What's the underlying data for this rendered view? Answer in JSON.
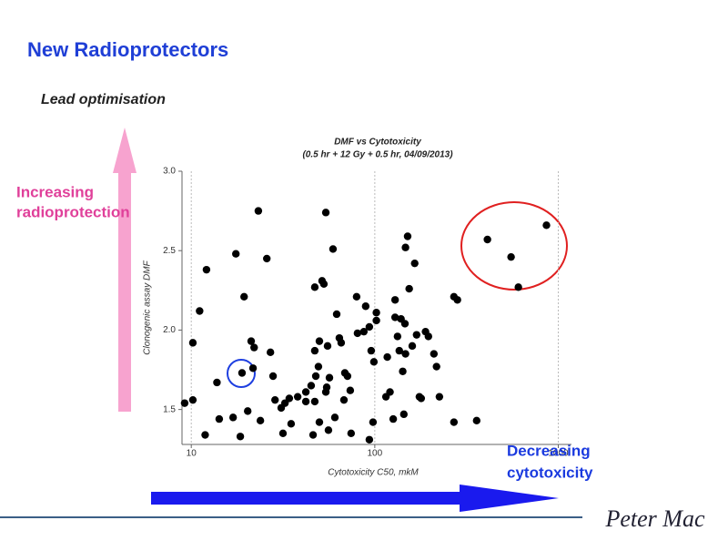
{
  "slide": {
    "title": "New Radioprotectors",
    "subtitle": "Lead optimisation",
    "left_note": [
      "Increasing",
      "radioprotection"
    ],
    "bottom_note": [
      "Decreasing",
      "cytotoxicity"
    ],
    "logo": "Peter Mac"
  },
  "chart_data": {
    "type": "scatter",
    "title": "DMF vs Cytotoxicity",
    "subtitle": "(0.5 hr + 12 Gy + 0.5 hr, 04/09/2013)",
    "x_label": "Cytotoxicity C50, mkM",
    "y_label": "Clonogenic assay DMF",
    "xscale": "log",
    "xlim": [
      8.9,
      1180
    ],
    "ylim": [
      1.28,
      3.0
    ],
    "xticks": [
      10,
      100,
      1000
    ],
    "yticks": [
      1.5,
      {
        "value": 2,
        "label": "2.0"
      },
      2.5,
      {
        "value": 3,
        "label": "3.0"
      }
    ],
    "grid": "x",
    "color": "#000000",
    "x": [
      9.2,
      10.2,
      10.2,
      11.1,
      12.1,
      11.9,
      13.8,
      14.2,
      16.9,
      17.5,
      18.5,
      19.4,
      20.3,
      21.2,
      22.0,
      21.7,
      23.2,
      23.8,
      25.8,
      27.0,
      27.9,
      28.6,
      30.9,
      31.6,
      32.4,
      34.2,
      35.0,
      38.0,
      42.1,
      42.1,
      45.0,
      46.1,
      47.1,
      47.7,
      47.1,
      49.3,
      49.9,
      47.1,
      49.9,
      51.6,
      52.8,
      54.1,
      54.1,
      54.7,
      55.3,
      56.6,
      55.9,
      59.2,
      60.6,
      62.0,
      64.1,
      65.6,
      67.9,
      68.7,
      71.0,
      74.3,
      73.5,
      79.6,
      80.5,
      87.2,
      89.2,
      93.4,
      95.6,
      98.9,
      102,
      93.4,
      97.8,
      102,
      115,
      117,
      121,
      126,
      129,
      129,
      133,
      136,
      139,
      142,
      146,
      144,
      147,
      151,
      147,
      154,
      160,
      165,
      169,
      175,
      179,
      189,
      196,
      210,
      217,
      225,
      270,
      270,
      282,
      359,
      411,
      553,
      606,
      862,
      18.9
    ],
    "y": [
      1.54,
      1.56,
      1.92,
      2.12,
      2.38,
      1.34,
      1.67,
      1.44,
      1.45,
      2.48,
      1.33,
      2.21,
      1.49,
      1.93,
      1.89,
      1.76,
      2.75,
      1.43,
      2.45,
      1.86,
      1.71,
      1.56,
      1.51,
      1.35,
      1.54,
      1.57,
      1.41,
      1.58,
      1.61,
      1.55,
      1.65,
      1.34,
      1.55,
      1.71,
      1.87,
      1.77,
      1.93,
      2.27,
      1.42,
      2.31,
      2.29,
      2.74,
      1.61,
      1.64,
      1.9,
      1.7,
      1.37,
      2.51,
      1.45,
      2.1,
      1.95,
      1.92,
      1.56,
      1.73,
      1.71,
      1.35,
      1.62,
      2.21,
      1.98,
      1.99,
      2.15,
      2.02,
      1.87,
      1.8,
      2.11,
      1.31,
      1.42,
      2.06,
      1.58,
      1.83,
      1.61,
      1.44,
      2.19,
      2.08,
      1.96,
      1.87,
      2.07,
      1.74,
      2.04,
      1.47,
      1.85,
      2.59,
      2.52,
      2.26,
      1.9,
      2.42,
      1.97,
      1.58,
      1.57,
      1.99,
      1.96,
      1.85,
      1.77,
      1.58,
      1.42,
      2.21,
      2.19,
      1.43,
      2.57,
      2.46,
      2.27,
      2.66,
      1.73
    ]
  }
}
